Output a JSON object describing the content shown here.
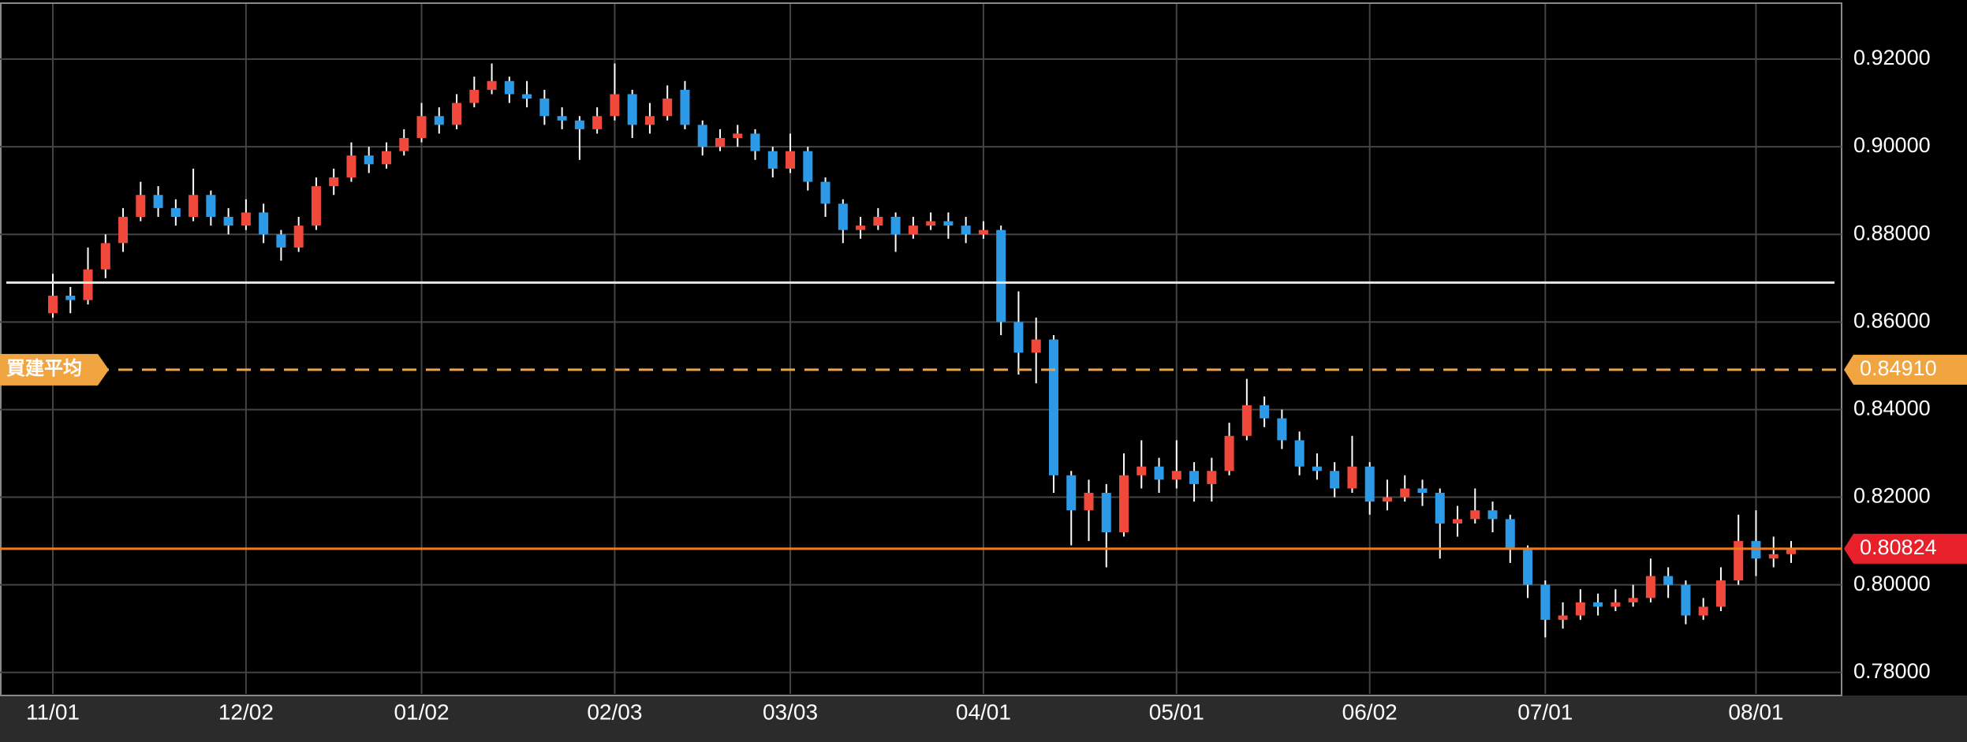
{
  "chart_data": {
    "type": "candlestick",
    "categories": [
      "11/01",
      null,
      null,
      null,
      null,
      null,
      null,
      null,
      null,
      null,
      null,
      "12/02",
      null,
      null,
      null,
      null,
      null,
      null,
      null,
      null,
      null,
      "01/02",
      null,
      null,
      null,
      null,
      null,
      null,
      null,
      null,
      null,
      null,
      "02/03",
      null,
      null,
      null,
      null,
      null,
      null,
      null,
      null,
      null,
      "03/03",
      null,
      null,
      null,
      null,
      null,
      null,
      null,
      null,
      null,
      null,
      "04/01",
      null,
      null,
      null,
      null,
      null,
      null,
      null,
      null,
      null,
      null,
      "05/01",
      null,
      null,
      null,
      null,
      null,
      null,
      null,
      null,
      null,
      null,
      "06/02",
      null,
      null,
      null,
      null,
      null,
      null,
      null,
      null,
      null,
      "07/01",
      null,
      null,
      null,
      null,
      null,
      null,
      null,
      null,
      null,
      null,
      null,
      "08/01",
      null,
      null
    ],
    "ohlc": [
      [
        0.862,
        0.871,
        0.861,
        0.866
      ],
      [
        0.866,
        0.868,
        0.862,
        0.865
      ],
      [
        0.865,
        0.877,
        0.864,
        0.872
      ],
      [
        0.872,
        0.88,
        0.87,
        0.878
      ],
      [
        0.878,
        0.886,
        0.876,
        0.884
      ],
      [
        0.884,
        0.892,
        0.883,
        0.889
      ],
      [
        0.889,
        0.891,
        0.884,
        0.886
      ],
      [
        0.886,
        0.888,
        0.882,
        0.884
      ],
      [
        0.884,
        0.895,
        0.883,
        0.889
      ],
      [
        0.889,
        0.89,
        0.882,
        0.884
      ],
      [
        0.884,
        0.886,
        0.88,
        0.882
      ],
      [
        0.882,
        0.888,
        0.881,
        0.885
      ],
      [
        0.885,
        0.887,
        0.878,
        0.88
      ],
      [
        0.88,
        0.881,
        0.874,
        0.877
      ],
      [
        0.877,
        0.884,
        0.876,
        0.882
      ],
      [
        0.882,
        0.893,
        0.881,
        0.891
      ],
      [
        0.891,
        0.895,
        0.889,
        0.893
      ],
      [
        0.893,
        0.901,
        0.892,
        0.898
      ],
      [
        0.898,
        0.9,
        0.894,
        0.896
      ],
      [
        0.896,
        0.901,
        0.895,
        0.899
      ],
      [
        0.899,
        0.904,
        0.898,
        0.902
      ],
      [
        0.902,
        0.91,
        0.901,
        0.907
      ],
      [
        0.907,
        0.909,
        0.903,
        0.905
      ],
      [
        0.905,
        0.912,
        0.904,
        0.91
      ],
      [
        0.91,
        0.916,
        0.909,
        0.913
      ],
      [
        0.913,
        0.919,
        0.912,
        0.915
      ],
      [
        0.915,
        0.916,
        0.91,
        0.912
      ],
      [
        0.912,
        0.915,
        0.909,
        0.911
      ],
      [
        0.911,
        0.913,
        0.905,
        0.907
      ],
      [
        0.907,
        0.909,
        0.904,
        0.906
      ],
      [
        0.906,
        0.907,
        0.897,
        0.904
      ],
      [
        0.904,
        0.909,
        0.903,
        0.907
      ],
      [
        0.907,
        0.919,
        0.906,
        0.912
      ],
      [
        0.912,
        0.913,
        0.902,
        0.905
      ],
      [
        0.905,
        0.91,
        0.903,
        0.907
      ],
      [
        0.907,
        0.914,
        0.906,
        0.911
      ],
      [
        0.913,
        0.915,
        0.904,
        0.905
      ],
      [
        0.905,
        0.906,
        0.898,
        0.9
      ],
      [
        0.9,
        0.904,
        0.899,
        0.902
      ],
      [
        0.902,
        0.905,
        0.9,
        0.903
      ],
      [
        0.903,
        0.904,
        0.897,
        0.899
      ],
      [
        0.899,
        0.9,
        0.893,
        0.895
      ],
      [
        0.895,
        0.903,
        0.894,
        0.899
      ],
      [
        0.899,
        0.9,
        0.89,
        0.892
      ],
      [
        0.892,
        0.893,
        0.884,
        0.887
      ],
      [
        0.887,
        0.888,
        0.878,
        0.881
      ],
      [
        0.881,
        0.884,
        0.879,
        0.882
      ],
      [
        0.882,
        0.886,
        0.881,
        0.884
      ],
      [
        0.884,
        0.885,
        0.876,
        0.88
      ],
      [
        0.88,
        0.884,
        0.879,
        0.882
      ],
      [
        0.882,
        0.885,
        0.881,
        0.883
      ],
      [
        0.883,
        0.885,
        0.879,
        0.882
      ],
      [
        0.882,
        0.884,
        0.878,
        0.88
      ],
      [
        0.88,
        0.883,
        0.879,
        0.881
      ],
      [
        0.881,
        0.882,
        0.857,
        0.86
      ],
      [
        0.86,
        0.867,
        0.848,
        0.853
      ],
      [
        0.853,
        0.861,
        0.846,
        0.856
      ],
      [
        0.856,
        0.857,
        0.821,
        0.825
      ],
      [
        0.825,
        0.826,
        0.809,
        0.817
      ],
      [
        0.817,
        0.824,
        0.81,
        0.821
      ],
      [
        0.821,
        0.823,
        0.804,
        0.812
      ],
      [
        0.812,
        0.83,
        0.811,
        0.825
      ],
      [
        0.825,
        0.833,
        0.822,
        0.827
      ],
      [
        0.827,
        0.829,
        0.821,
        0.824
      ],
      [
        0.824,
        0.833,
        0.822,
        0.826
      ],
      [
        0.826,
        0.828,
        0.819,
        0.823
      ],
      [
        0.823,
        0.829,
        0.819,
        0.826
      ],
      [
        0.826,
        0.837,
        0.825,
        0.834
      ],
      [
        0.834,
        0.847,
        0.833,
        0.841
      ],
      [
        0.841,
        0.843,
        0.836,
        0.838
      ],
      [
        0.838,
        0.84,
        0.831,
        0.833
      ],
      [
        0.833,
        0.835,
        0.825,
        0.827
      ],
      [
        0.827,
        0.83,
        0.824,
        0.826
      ],
      [
        0.826,
        0.828,
        0.82,
        0.822
      ],
      [
        0.822,
        0.834,
        0.821,
        0.827
      ],
      [
        0.827,
        0.828,
        0.816,
        0.819
      ],
      [
        0.819,
        0.824,
        0.817,
        0.82
      ],
      [
        0.82,
        0.825,
        0.819,
        0.822
      ],
      [
        0.822,
        0.824,
        0.818,
        0.821
      ],
      [
        0.821,
        0.822,
        0.806,
        0.814
      ],
      [
        0.814,
        0.818,
        0.811,
        0.815
      ],
      [
        0.815,
        0.822,
        0.814,
        0.817
      ],
      [
        0.817,
        0.819,
        0.812,
        0.815
      ],
      [
        0.815,
        0.816,
        0.805,
        0.808
      ],
      [
        0.808,
        0.809,
        0.797,
        0.8
      ],
      [
        0.8,
        0.801,
        0.788,
        0.792
      ],
      [
        0.792,
        0.796,
        0.79,
        0.793
      ],
      [
        0.793,
        0.799,
        0.792,
        0.796
      ],
      [
        0.796,
        0.798,
        0.793,
        0.795
      ],
      [
        0.795,
        0.799,
        0.794,
        0.796
      ],
      [
        0.796,
        0.8,
        0.795,
        0.797
      ],
      [
        0.797,
        0.806,
        0.796,
        0.802
      ],
      [
        0.802,
        0.804,
        0.797,
        0.8
      ],
      [
        0.8,
        0.801,
        0.791,
        0.793
      ],
      [
        0.793,
        0.797,
        0.792,
        0.795
      ],
      [
        0.795,
        0.804,
        0.794,
        0.801
      ],
      [
        0.801,
        0.816,
        0.8,
        0.81
      ],
      [
        0.81,
        0.817,
        0.802,
        0.806
      ],
      [
        0.806,
        0.811,
        0.804,
        0.807
      ],
      [
        0.807,
        0.81,
        0.805,
        0.8082
      ]
    ],
    "up_color": "#f0483a",
    "down_color": "#2c9ae6",
    "ylim": [
      0.7751,
      0.9326
    ],
    "yticks": [
      {
        "value": 0.78,
        "label": "0.78000"
      },
      {
        "value": 0.8,
        "label": "0.80000"
      },
      {
        "value": 0.82,
        "label": "0.82000"
      },
      {
        "value": 0.84,
        "label": "0.84000"
      },
      {
        "value": 0.86,
        "label": "0.86000"
      },
      {
        "value": 0.88,
        "label": "0.88000"
      },
      {
        "value": 0.9,
        "label": "0.90000"
      },
      {
        "value": 0.92,
        "label": "0.92000"
      }
    ],
    "grid": true,
    "lines": [
      {
        "value": 0.869,
        "color": "#e6e6e6",
        "style": "solid"
      },
      {
        "value": 0.8491,
        "label": "0.84910",
        "name": "買建平均",
        "color": "#f0a540",
        "style": "dashed"
      },
      {
        "value": 0.80824,
        "label": "0.80824",
        "color": "#f07a1e",
        "label_color": "#e8202a",
        "style": "solid"
      }
    ]
  }
}
